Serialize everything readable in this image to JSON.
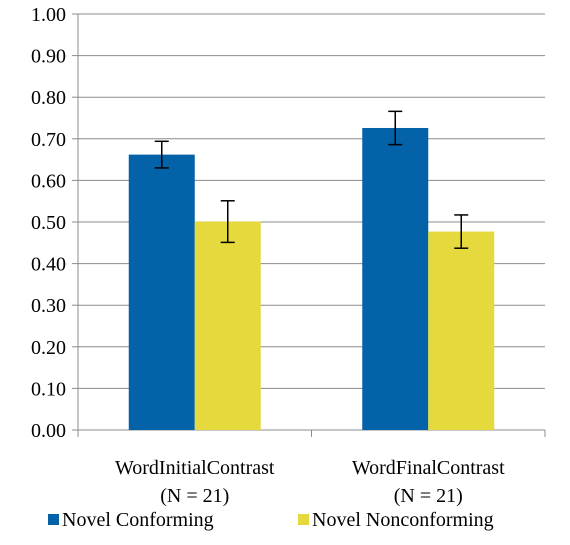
{
  "chart_data": {
    "type": "bar",
    "title": "",
    "xlabel": "",
    "ylabel": "",
    "ylim": [
      0,
      1.0
    ],
    "ytick_step": 0.1,
    "ytick_labels": [
      "0.00",
      "0.10",
      "0.20",
      "0.30",
      "0.40",
      "0.50",
      "0.60",
      "0.70",
      "0.80",
      "0.90",
      "1.00"
    ],
    "grid": true,
    "legend_position": "bottom",
    "categories": [
      {
        "line1": "WordInitialContrast",
        "line2": "(N = 21)"
      },
      {
        "line1": "WordFinalContrast",
        "line2": "(N = 21)"
      }
    ],
    "series": [
      {
        "name": "Novel Conforming",
        "color": "#0462A8",
        "values": [
          0.662,
          0.726
        ],
        "error": [
          0.032,
          0.04
        ]
      },
      {
        "name": "Novel Nonconforming",
        "color": "#E5D93E",
        "values": [
          0.501,
          0.477
        ],
        "error": [
          0.05,
          0.04
        ]
      }
    ]
  }
}
